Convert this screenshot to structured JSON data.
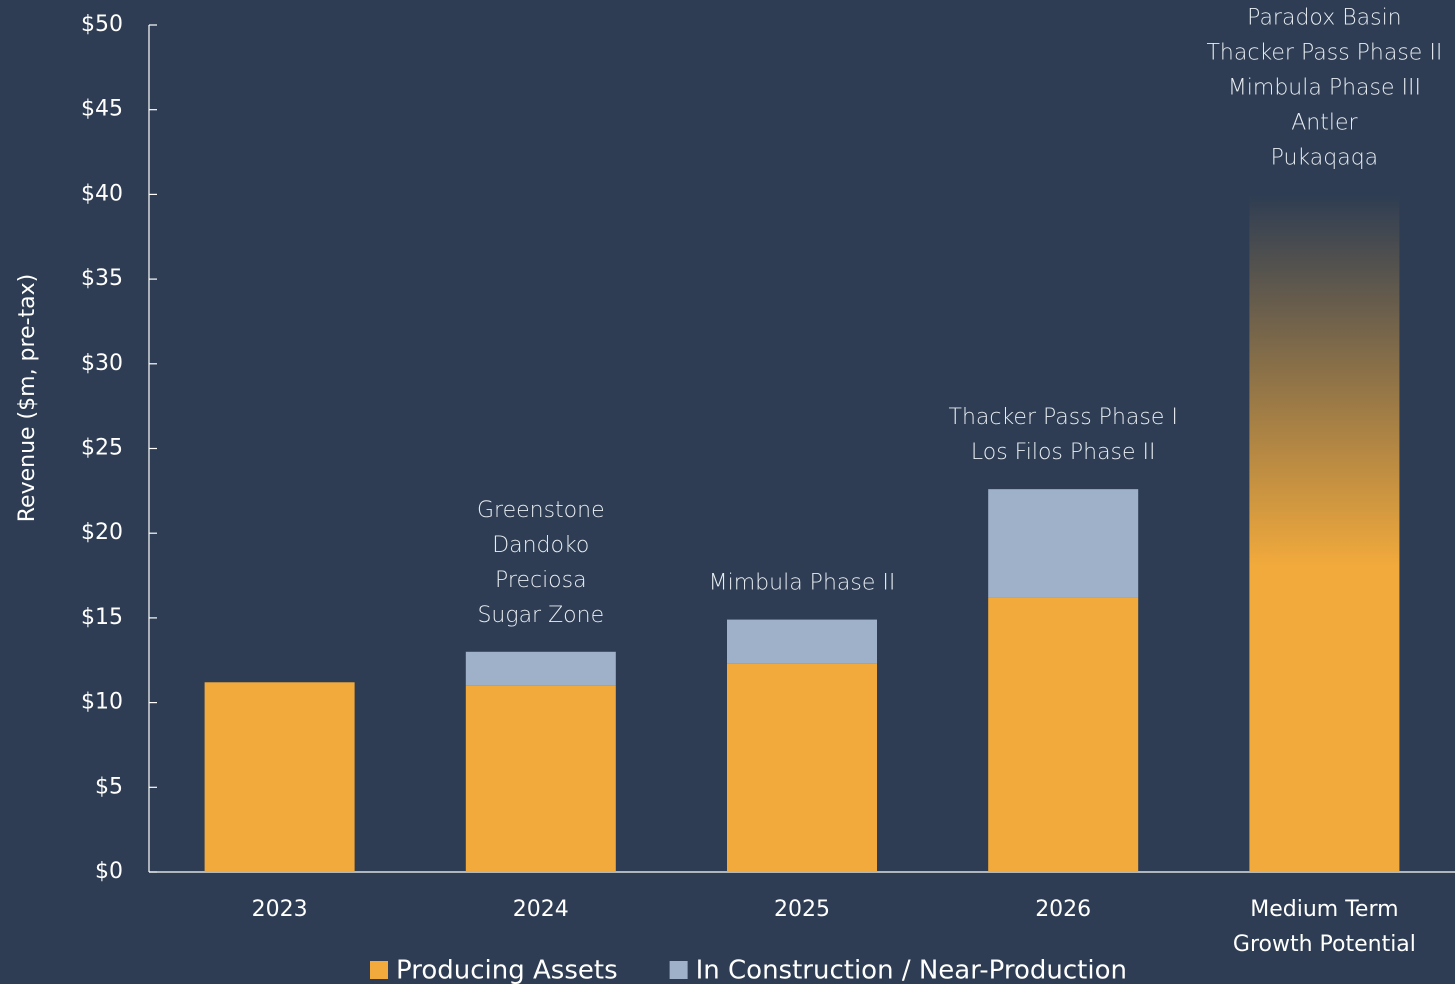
{
  "chart_data": {
    "type": "stacked_bar",
    "y_label": "Revenue ($m, pre-tax)",
    "categories": [
      "2023",
      "2024",
      "2025",
      "2026",
      "Medium Term\nGrowth Potential"
    ],
    "series": [
      {
        "name": "Producing Assets",
        "color": "#f2aa3c",
        "values": [
          11.2,
          11.0,
          12.3,
          16.2,
          40.0
        ]
      },
      {
        "name": "In Construction / Near-Production",
        "color": "#9fb0c9",
        "values": [
          null,
          2.0,
          2.6,
          6.4,
          null
        ]
      }
    ],
    "annotations": [
      [],
      [
        "Greenstone",
        "Dandoko",
        "Preciosa",
        "Sugar Zone"
      ],
      [
        "Mimbula Phase II"
      ],
      [
        "Thacker Pass Phase I",
        "Los Filos Phase II"
      ],
      [
        "Paradox Basin",
        "Thacker Pass Phase II",
        "Mimbula Phase III",
        "Antler",
        "Pukaqaqa"
      ]
    ],
    "fade_last": true,
    "ylim": [
      0,
      50
    ],
    "yticks": [
      {
        "value": 0,
        "label": "$0"
      },
      {
        "value": 5,
        "label": "$5"
      },
      {
        "value": 10,
        "label": "$10"
      },
      {
        "value": 15,
        "label": "$15"
      },
      {
        "value": 20,
        "label": "$20"
      },
      {
        "value": 25,
        "label": "$25"
      },
      {
        "value": 30,
        "label": "$30"
      },
      {
        "value": 35,
        "label": "$35"
      },
      {
        "value": 40,
        "label": "$40"
      },
      {
        "value": 45,
        "label": "$45"
      },
      {
        "value": 50,
        "label": "$50"
      }
    ],
    "legend": "bottom"
  }
}
